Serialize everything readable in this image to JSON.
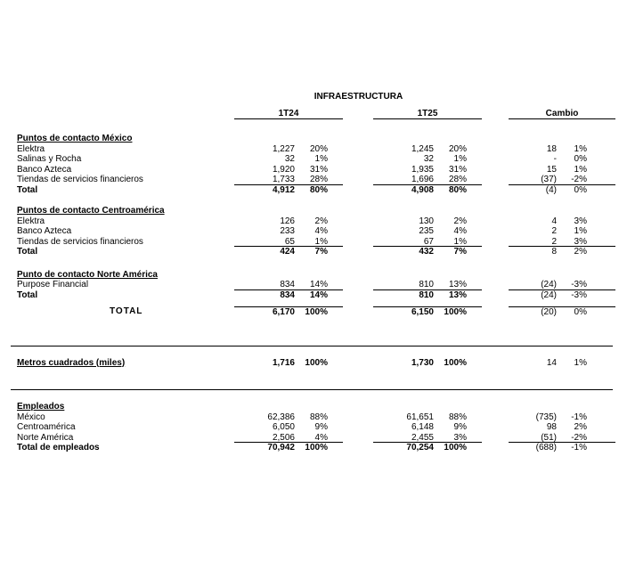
{
  "title": "INFRAESTRUCTURA",
  "columns": {
    "c1": "1T24",
    "c2": "1T25",
    "c3": "Cambio"
  },
  "sections": [
    {
      "header": "Puntos de contacto México",
      "rows": [
        {
          "label": "Elektra",
          "v1": "1,227",
          "p1": "20%",
          "v2": "1,245",
          "p2": "20%",
          "v3": "18",
          "p3": "1%"
        },
        {
          "label": "Salinas y Rocha",
          "v1": "32",
          "p1": "1%",
          "v2": "32",
          "p2": "1%",
          "v3": "-",
          "p3": "0%"
        },
        {
          "label": "Banco Azteca",
          "v1": "1,920",
          "p1": "31%",
          "v2": "1,935",
          "p2": "31%",
          "v3": "15",
          "p3": "1%"
        },
        {
          "label": "Tiendas de servicios financieros",
          "v1": "1,733",
          "p1": "28%",
          "v2": "1,696",
          "p2": "28%",
          "v3": "(37)",
          "p3": "-2%"
        }
      ],
      "total": {
        "label": "Total",
        "v1": "4,912",
        "p1": "80%",
        "v2": "4,908",
        "p2": "80%",
        "v3": "(4)",
        "p3": "0%"
      }
    },
    {
      "header": "Puntos de contacto Centroamérica",
      "rows": [
        {
          "label": "Elektra",
          "v1": "126",
          "p1": "2%",
          "v2": "130",
          "p2": "2%",
          "v3": "4",
          "p3": "3%"
        },
        {
          "label": "Banco Azteca",
          "v1": "233",
          "p1": "4%",
          "v2": "235",
          "p2": "4%",
          "v3": "2",
          "p3": "1%"
        },
        {
          "label": "Tiendas de servicios financieros",
          "v1": "65",
          "p1": "1%",
          "v2": "67",
          "p2": "1%",
          "v3": "2",
          "p3": "3%"
        }
      ],
      "total": {
        "label": "Total",
        "v1": "424",
        "p1": "7%",
        "v2": "432",
        "p2": "7%",
        "v3": "8",
        "p3": "2%"
      }
    },
    {
      "header": "Punto de contacto Norte América",
      "rows": [
        {
          "label": "Purpose Financial",
          "v1": "834",
          "p1": "14%",
          "v2": "810",
          "p2": "13%",
          "v3": "(24)",
          "p3": "-3%"
        }
      ],
      "total": {
        "label": "Total",
        "v1": "834",
        "p1": "14%",
        "v2": "810",
        "p2": "13%",
        "v3": "(24)",
        "p3": "-3%"
      }
    }
  ],
  "grand_total": {
    "label": "TOTAL",
    "v1": "6,170",
    "p1": "100%",
    "v2": "6,150",
    "p2": "100%",
    "v3": "(20)",
    "p3": "0%"
  },
  "metros": {
    "label": "Metros cuadrados (miles)",
    "v1": "1,716",
    "p1": "100%",
    "v2": "1,730",
    "p2": "100%",
    "v3": "14",
    "p3": "1%"
  },
  "empleados": {
    "header": "Empleados",
    "rows": [
      {
        "label": "México",
        "v1": "62,386",
        "p1": "88%",
        "v2": "61,651",
        "p2": "88%",
        "v3": "(735)",
        "p3": "-1%"
      },
      {
        "label": "Centroamérica",
        "v1": "6,050",
        "p1": "9%",
        "v2": "6,148",
        "p2": "9%",
        "v3": "98",
        "p3": "2%"
      },
      {
        "label": "Norte América",
        "v1": "2,506",
        "p1": "4%",
        "v2": "2,455",
        "p2": "3%",
        "v3": "(51)",
        "p3": "-2%"
      }
    ],
    "total": {
      "label": "Total de empleados",
      "v1": "70,942",
      "p1": "100%",
      "v2": "70,254",
      "p2": "100%",
      "v3": "(688)",
      "p3": "-1%"
    }
  }
}
